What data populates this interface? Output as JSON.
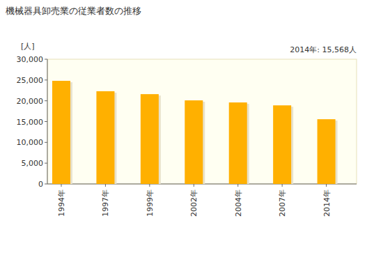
{
  "chart_data": {
    "type": "bar",
    "title": "機械器具卸売業の従業者数の推移",
    "y_label": "[人]",
    "annotation": "2014年: 15,568人",
    "categories": [
      "1994年",
      "1997年",
      "1999年",
      "2002年",
      "2004年",
      "2007年",
      "2014年"
    ],
    "values": [
      24800,
      22300,
      21600,
      20100,
      19600,
      18900,
      15568
    ],
    "color": "#ffb000",
    "ylim": [
      0,
      30000
    ],
    "yticks": [
      0,
      {
        "value": 5000,
        "label": "5,000"
      },
      {
        "value": 10000,
        "label": "10,000"
      },
      {
        "value": 15000,
        "label": "15,000"
      },
      {
        "value": 20000,
        "label": "20,000"
      },
      {
        "value": 25000,
        "label": "25,000"
      },
      {
        "value": 30000,
        "label": "30,000"
      }
    ],
    "grid": false
  }
}
